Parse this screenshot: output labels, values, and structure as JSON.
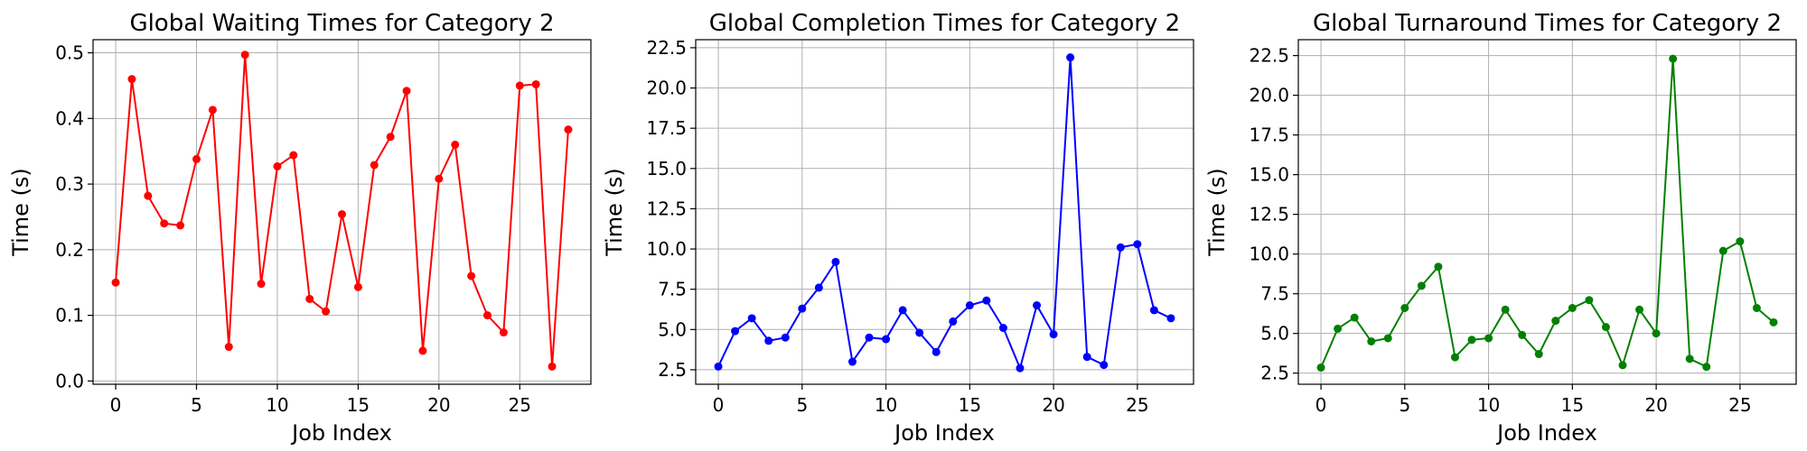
{
  "chart_data": [
    {
      "type": "line",
      "title": "Global Waiting Times for Category 2",
      "xlabel": "Job Index",
      "ylabel": "Time (s)",
      "xlim": [
        -1.4,
        29.4
      ],
      "ylim": [
        -0.005,
        0.52
      ],
      "xticks": [
        0,
        5,
        10,
        15,
        20,
        25
      ],
      "yticks": [
        0.0,
        0.1,
        0.2,
        0.3,
        0.4,
        0.5
      ],
      "ytick_labels": [
        "0.0",
        "0.1",
        "0.2",
        "0.3",
        "0.4",
        "0.5"
      ],
      "grid": true,
      "color": "#ff0000",
      "series": [
        {
          "x": [
            0,
            1,
            2,
            3,
            4,
            5,
            6,
            7,
            8,
            9,
            10,
            11,
            12,
            13,
            14,
            15,
            16,
            17,
            18,
            19,
            20,
            21,
            22,
            23,
            24,
            25,
            26,
            27,
            28
          ],
          "values": [
            0.15,
            0.46,
            0.282,
            0.24,
            0.237,
            0.338,
            0.413,
            0.052,
            0.497,
            0.148,
            0.327,
            0.344,
            0.125,
            0.106,
            0.254,
            0.143,
            0.329,
            0.372,
            0.442,
            0.046,
            0.308,
            0.36,
            0.16,
            0.1,
            0.074,
            0.45,
            0.452,
            0.022,
            0.383
          ]
        }
      ]
    },
    {
      "type": "line",
      "title": "Global Completion Times for Category 2",
      "xlabel": "Job Index",
      "ylabel": "Time (s)",
      "xlim": [
        -1.35,
        28.35
      ],
      "ylim": [
        1.6,
        23.0
      ],
      "xticks": [
        0,
        5,
        10,
        15,
        20,
        25
      ],
      "yticks": [
        2.5,
        5.0,
        7.5,
        10.0,
        12.5,
        15.0,
        17.5,
        20.0,
        22.5
      ],
      "ytick_labels": [
        "2.5",
        "5.0",
        "7.5",
        "10.0",
        "12.5",
        "15.0",
        "17.5",
        "20.0",
        "22.5"
      ],
      "grid": true,
      "color": "#0000ff",
      "series": [
        {
          "x": [
            0,
            1,
            2,
            3,
            4,
            5,
            6,
            7,
            8,
            9,
            10,
            11,
            12,
            13,
            14,
            15,
            16,
            17,
            18,
            19,
            20,
            21,
            22,
            23,
            24,
            25,
            26,
            27
          ],
          "values": [
            2.7,
            4.9,
            5.7,
            4.3,
            4.5,
            6.3,
            7.6,
            9.2,
            3.0,
            4.5,
            4.4,
            6.2,
            4.8,
            3.6,
            5.5,
            6.5,
            6.8,
            5.1,
            2.6,
            6.5,
            4.7,
            21.9,
            3.3,
            2.8,
            10.1,
            10.3,
            6.2,
            5.7
          ]
        }
      ]
    },
    {
      "type": "line",
      "title": "Global Turnaround Times for Category 2",
      "xlabel": "Job Index",
      "ylabel": "Time (s)",
      "xlim": [
        -1.35,
        28.35
      ],
      "ylim": [
        1.8,
        23.5
      ],
      "xticks": [
        0,
        5,
        10,
        15,
        20,
        25
      ],
      "yticks": [
        2.5,
        5.0,
        7.5,
        10.0,
        12.5,
        15.0,
        17.5,
        20.0,
        22.5
      ],
      "ytick_labels": [
        "2.5",
        "5.0",
        "7.5",
        "10.0",
        "12.5",
        "15.0",
        "17.5",
        "20.0",
        "22.5"
      ],
      "grid": true,
      "color": "#008000",
      "series": [
        {
          "x": [
            0,
            1,
            2,
            3,
            4,
            5,
            6,
            7,
            8,
            9,
            10,
            11,
            12,
            13,
            14,
            15,
            16,
            17,
            18,
            19,
            20,
            21,
            22,
            23,
            24,
            25,
            26,
            27
          ],
          "values": [
            2.85,
            5.3,
            6.0,
            4.5,
            4.7,
            6.6,
            8.0,
            9.2,
            3.5,
            4.6,
            4.7,
            6.5,
            4.9,
            3.7,
            5.8,
            6.6,
            7.1,
            5.4,
            3.0,
            6.5,
            5.0,
            22.3,
            3.4,
            2.9,
            10.2,
            10.8,
            6.6,
            5.7
          ]
        }
      ]
    }
  ]
}
